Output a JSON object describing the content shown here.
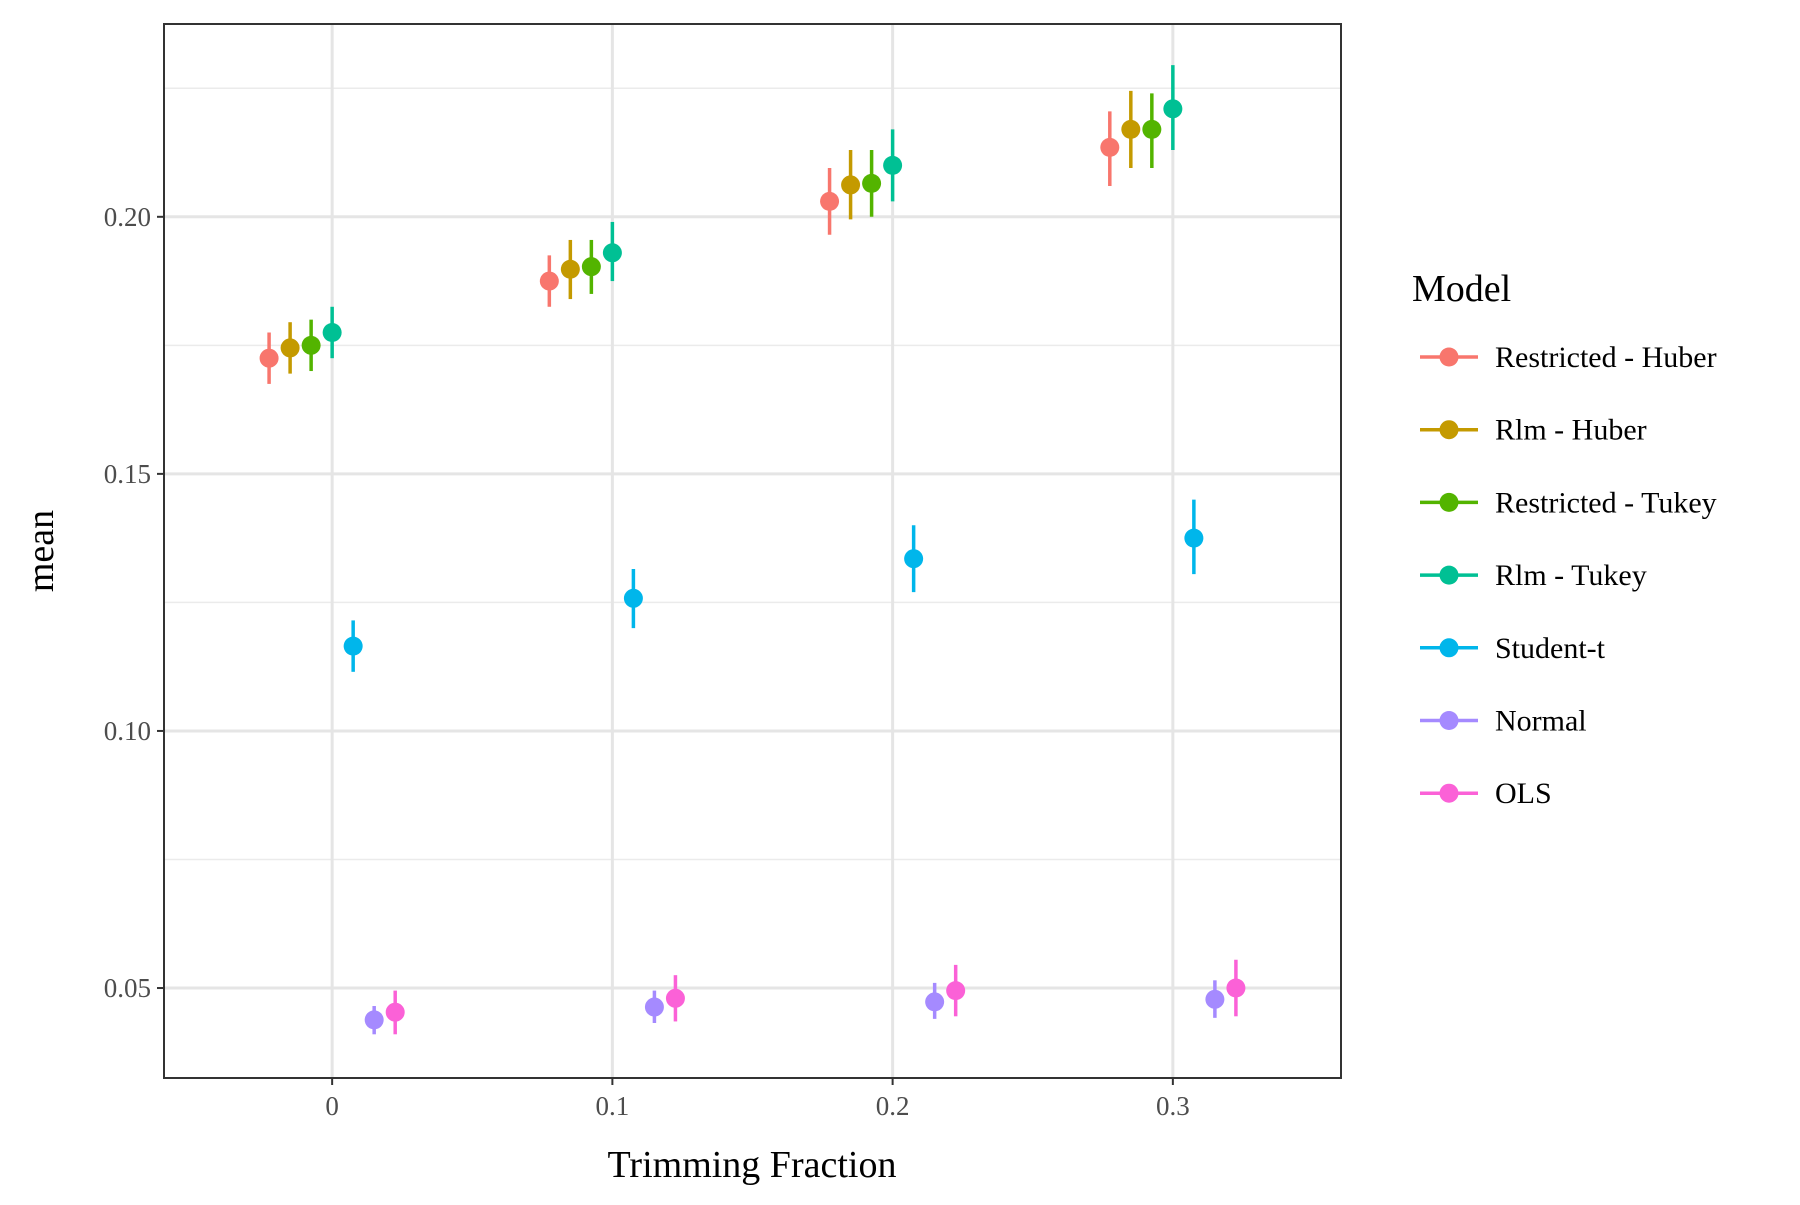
{
  "chart_data": {
    "type": "scatter",
    "subtype": "point-range",
    "xlabel": "Trimming Fraction",
    "ylabel": "mean",
    "xlim": [
      -0.06,
      0.36
    ],
    "ylim": [
      0.0325,
      0.2375
    ],
    "x_ticks": [
      0,
      0.1,
      0.2,
      0.3
    ],
    "x_tick_labels": [
      "0",
      "0.1",
      "0.2",
      "0.3"
    ],
    "y_ticks": [
      0.05,
      0.1,
      0.15,
      0.2
    ],
    "y_tick_labels": [
      "0.05",
      "0.10",
      "0.15",
      "0.20"
    ],
    "y_minor_ticks": [
      0.075,
      0.125,
      0.175,
      0.225
    ],
    "grid": true,
    "dodge_width": 0.0075,
    "legend": {
      "title": "Model",
      "position": "right"
    },
    "x": [
      0,
      0.1,
      0.2,
      0.3
    ],
    "series": [
      {
        "name": "Restricted - Huber",
        "color": "#F8766D",
        "offset_index": 0,
        "mean": [
          0.1725,
          0.1875,
          0.203,
          0.2135
        ],
        "lower": [
          0.1675,
          0.1825,
          0.1965,
          0.206
        ],
        "upper": [
          0.1775,
          0.1925,
          0.2095,
          0.2205
        ]
      },
      {
        "name": "Rlm - Huber",
        "color": "#C49A00",
        "offset_index": 1,
        "mean": [
          0.1745,
          0.1898,
          0.2062,
          0.217
        ],
        "lower": [
          0.1695,
          0.184,
          0.1995,
          0.2095
        ],
        "upper": [
          0.1795,
          0.1955,
          0.213,
          0.2245
        ]
      },
      {
        "name": "Restricted - Tukey",
        "color": "#53B400",
        "offset_index": 2,
        "mean": [
          0.175,
          0.1903,
          0.2065,
          0.217
        ],
        "lower": [
          0.17,
          0.185,
          0.2,
          0.2095
        ],
        "upper": [
          0.18,
          0.1955,
          0.213,
          0.224
        ]
      },
      {
        "name": "Rlm - Tukey",
        "color": "#00C094",
        "offset_index": 3,
        "mean": [
          0.1775,
          0.193,
          0.21,
          0.221
        ],
        "lower": [
          0.1725,
          0.1875,
          0.203,
          0.213
        ],
        "upper": [
          0.1825,
          0.199,
          0.217,
          0.2295
        ]
      },
      {
        "name": "Student-t",
        "color": "#00B6EB",
        "offset_index": 4,
        "mean": [
          0.1165,
          0.1258,
          0.1335,
          0.1375
        ],
        "lower": [
          0.1115,
          0.12,
          0.127,
          0.1305
        ],
        "upper": [
          0.1215,
          0.1315,
          0.14,
          0.145
        ]
      },
      {
        "name": "Normal",
        "color": "#A58AFF",
        "offset_index": 5,
        "mean": [
          0.0438,
          0.0463,
          0.0473,
          0.0478
        ],
        "lower": [
          0.041,
          0.0432,
          0.044,
          0.0442
        ],
        "upper": [
          0.0465,
          0.0495,
          0.051,
          0.0515
        ]
      },
      {
        "name": "OLS",
        "color": "#FB61D7",
        "offset_index": 6,
        "mean": [
          0.0453,
          0.048,
          0.0495,
          0.05
        ],
        "lower": [
          0.041,
          0.0435,
          0.0445,
          0.0445
        ],
        "upper": [
          0.0495,
          0.0525,
          0.0545,
          0.0555
        ]
      }
    ]
  }
}
